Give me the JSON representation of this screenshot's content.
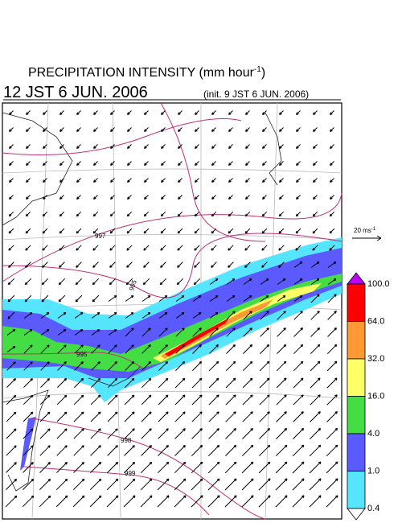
{
  "title": {
    "text": "PRECIPITATION INTENSITY (mm hour",
    "sup": "-1",
    "close": ")"
  },
  "valid_time": "12 JST 6 JUN. 2006",
  "init_time": "(init. 9 JST 6 JUN. 2006)",
  "reference_vector": {
    "text": "20 ms",
    "sup": "-1"
  },
  "colorbar": {
    "labels": [
      "100.0",
      "64.0",
      "32.0",
      "16.0",
      "4.0",
      "1.0",
      "0.4"
    ],
    "colors": [
      "#c000ff",
      "#ff0000",
      "#ff9933",
      "#ffff66",
      "#44dd44",
      "#5a5aff",
      "#55e5ff",
      "#ffffff"
    ]
  },
  "isobar_labels": [
    "997",
    "995",
    "995",
    "998",
    "999"
  ]
}
